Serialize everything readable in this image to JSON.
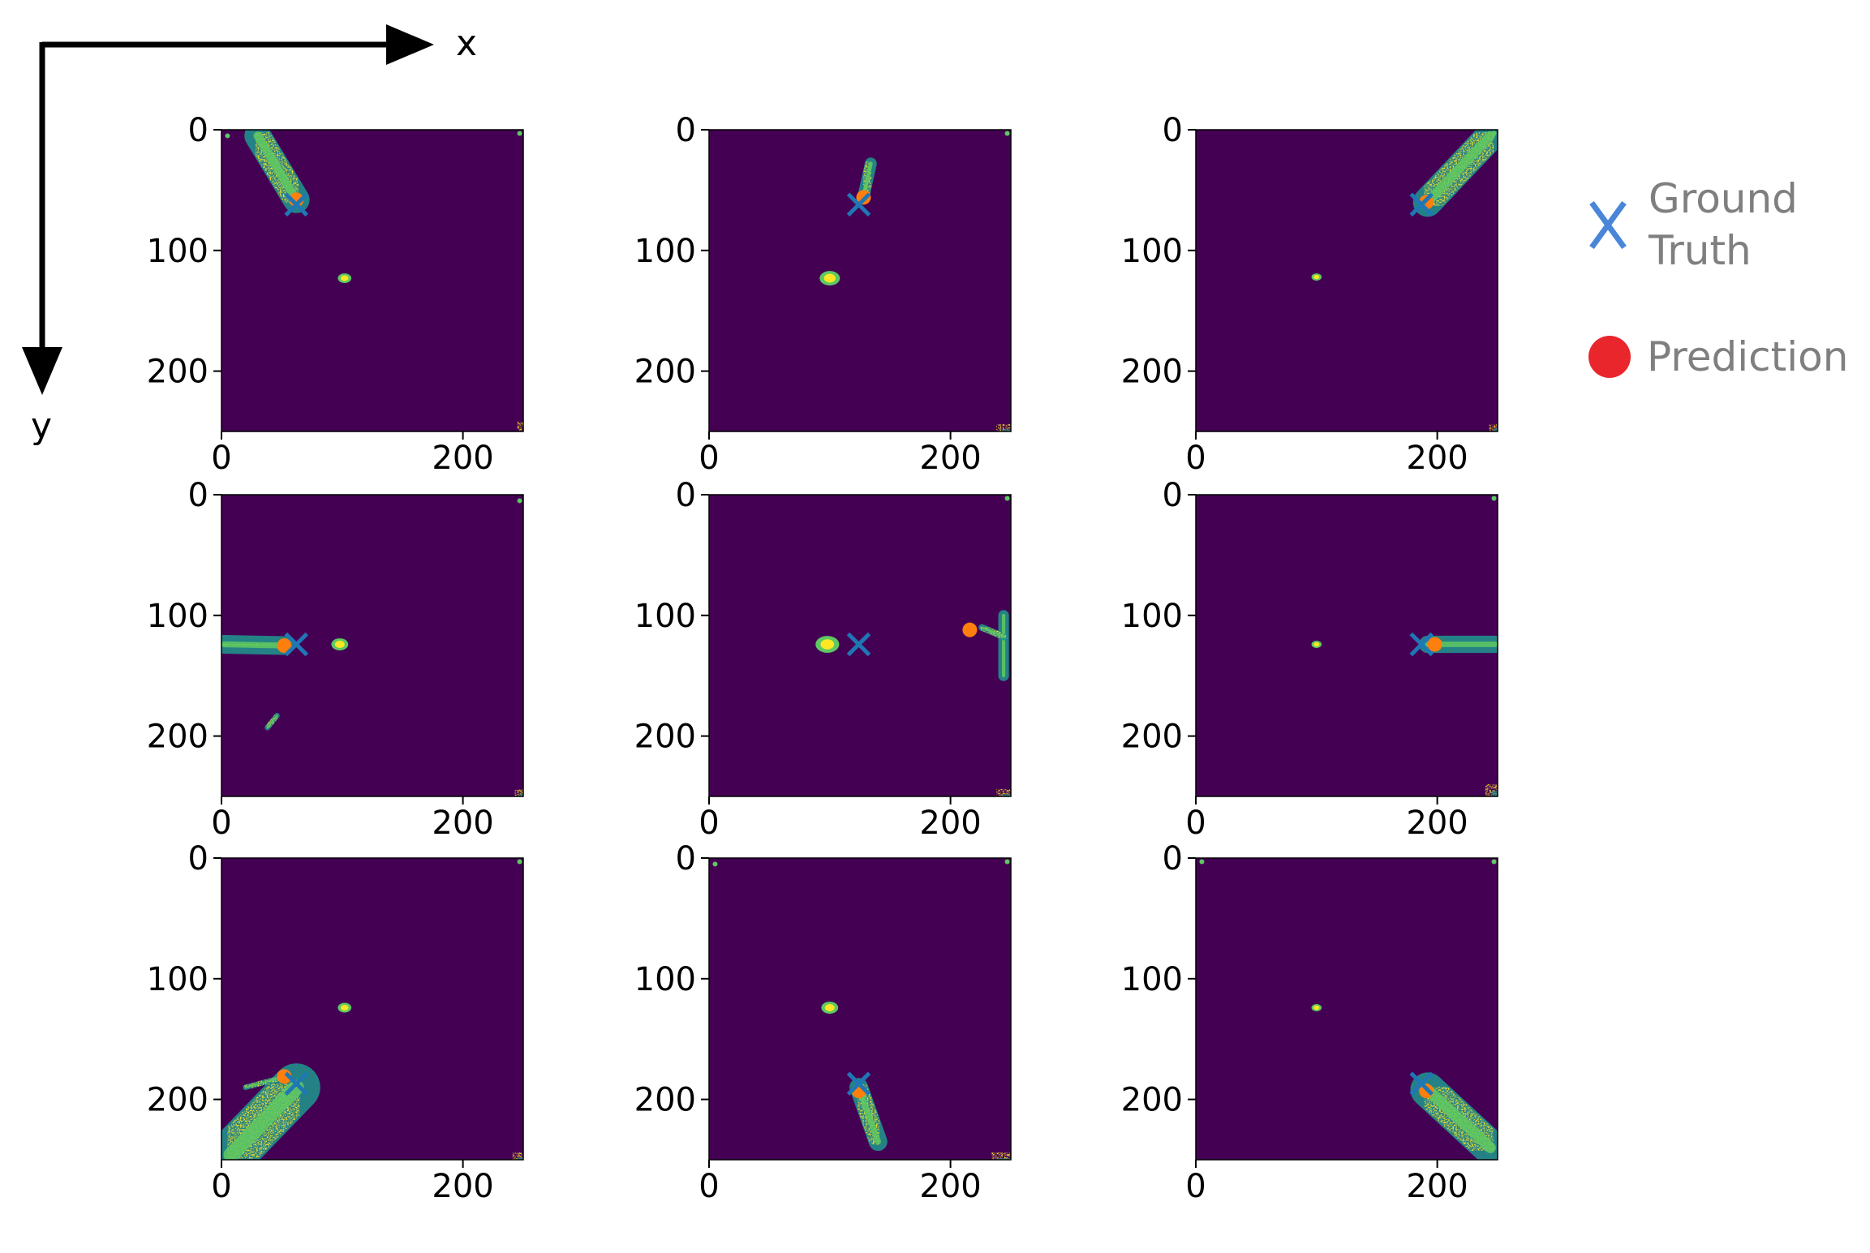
{
  "colors": {
    "background": "#440154",
    "heat_low": "#21918c",
    "heat_mid": "#5ec962",
    "heat_high": "#fde725",
    "ground_truth": "#1f77b4",
    "prediction": "#ff7f0e",
    "legend_x": "#4a86d8",
    "legend_dot": "#e8262c",
    "legend_text": "#7f7f7f"
  },
  "axis_indicator": {
    "x_label": "x",
    "y_label": "y"
  },
  "legend": {
    "ground_truth_line1": "Ground",
    "ground_truth_line2": "Truth",
    "prediction": "Prediction"
  },
  "chart_data": {
    "type": "heatmap",
    "grid": "3x3 panels",
    "image_extent": [
      0,
      250
    ],
    "x_ticks": [
      0,
      200
    ],
    "y_ticks": [
      0,
      100,
      200
    ],
    "panels": [
      {
        "ground_truth": [
          62,
          62
        ],
        "prediction": [
          62,
          58
        ],
        "blobs": [
          {
            "shape": "streak",
            "from": [
              30,
              5
            ],
            "to": [
              62,
              58
            ],
            "width": 20
          },
          {
            "shape": "spot",
            "at": [
              102,
              123
            ],
            "r": 4
          },
          {
            "shape": "corner",
            "at": [
              245,
              242
            ],
            "size": 16
          },
          {
            "shape": "dot",
            "at": [
              5,
              5
            ],
            "r": 2
          },
          {
            "shape": "dot",
            "at": [
              247,
              3
            ],
            "r": 2
          }
        ]
      },
      {
        "ground_truth": [
          124,
          62
        ],
        "prediction": [
          128,
          56
        ],
        "blobs": [
          {
            "shape": "streak",
            "from": [
              134,
              28
            ],
            "to": [
              128,
              55
            ],
            "width": 9
          },
          {
            "shape": "spot",
            "at": [
              100,
              123
            ],
            "r": 6
          },
          {
            "shape": "corner",
            "at": [
              238,
              244
            ],
            "size": 14
          },
          {
            "shape": "dot",
            "at": [
              247,
              3
            ],
            "r": 2
          }
        ]
      },
      {
        "ground_truth": [
          187,
          62
        ],
        "prediction": [
          191,
          60
        ],
        "blobs": [
          {
            "shape": "streak",
            "from": [
              244,
              5
            ],
            "to": [
              192,
              60
            ],
            "width": 22
          },
          {
            "shape": "spot",
            "at": [
              100,
              122
            ],
            "r": 3
          },
          {
            "shape": "corner",
            "at": [
              243,
              244
            ],
            "size": 12
          },
          {
            "shape": "dot",
            "at": [
              247,
              3
            ],
            "r": 2
          }
        ]
      },
      {
        "ground_truth": [
          62,
          124
        ],
        "prediction": [
          52,
          125
        ],
        "blobs": [
          {
            "shape": "streak",
            "from": [
              2,
              124
            ],
            "to": [
              52,
              125
            ],
            "width": 14
          },
          {
            "shape": "spot",
            "at": [
              98,
              124
            ],
            "r": 5
          },
          {
            "shape": "streak",
            "from": [
              46,
              183
            ],
            "to": [
              38,
              193
            ],
            "width": 4
          },
          {
            "shape": "corner",
            "at": [
              243,
              244
            ],
            "size": 12
          },
          {
            "shape": "dot",
            "at": [
              247,
              5
            ],
            "r": 2
          }
        ]
      },
      {
        "ground_truth": [
          124,
          124
        ],
        "prediction": [
          216,
          112
        ],
        "blobs": [
          {
            "shape": "spot",
            "at": [
              98,
              124
            ],
            "r": 7
          },
          {
            "shape": "streak",
            "from": [
              244,
              100
            ],
            "to": [
              244,
              150
            ],
            "width": 8
          },
          {
            "shape": "streak",
            "from": [
              226,
              110
            ],
            "to": [
              245,
              118
            ],
            "width": 5
          },
          {
            "shape": "corner",
            "at": [
              238,
              244
            ],
            "size": 14
          },
          {
            "shape": "dot",
            "at": [
              247,
              3
            ],
            "r": 2
          }
        ]
      },
      {
        "ground_truth": [
          187,
          124
        ],
        "prediction": [
          198,
          124
        ],
        "blobs": [
          {
            "shape": "streak",
            "from": [
              192,
              124
            ],
            "to": [
              248,
              124
            ],
            "width": 13
          },
          {
            "shape": "spot",
            "at": [
              100,
              124
            ],
            "r": 3
          },
          {
            "shape": "corner",
            "at": [
              240,
              240
            ],
            "size": 18
          },
          {
            "shape": "dot",
            "at": [
              247,
              3
            ],
            "r": 2
          }
        ]
      },
      {
        "ground_truth": [
          62,
          187
        ],
        "prediction": [
          52,
          181
        ],
        "blobs": [
          {
            "shape": "streak",
            "from": [
              8,
              246
            ],
            "to": [
              62,
              190
            ],
            "width": 36
          },
          {
            "shape": "streak",
            "from": [
              20,
              190
            ],
            "to": [
              50,
              182
            ],
            "width": 4
          },
          {
            "shape": "spot",
            "at": [
              102,
              124
            ],
            "r": 4
          },
          {
            "shape": "corner",
            "at": [
              241,
              244
            ],
            "size": 14
          },
          {
            "shape": "dot",
            "at": [
              247,
              3
            ],
            "r": 2
          }
        ]
      },
      {
        "ground_truth": [
          124,
          187
        ],
        "prediction": [
          124,
          193
        ],
        "blobs": [
          {
            "shape": "streak",
            "from": [
              124,
              190
            ],
            "to": [
              140,
              235
            ],
            "width": 14
          },
          {
            "shape": "spot",
            "at": [
              100,
              124
            ],
            "r": 5
          },
          {
            "shape": "corner",
            "at": [
              234,
              244
            ],
            "size": 16
          },
          {
            "shape": "dot",
            "at": [
              5,
              5
            ],
            "r": 2
          },
          {
            "shape": "dot",
            "at": [
              247,
              3
            ],
            "r": 2
          }
        ]
      },
      {
        "ground_truth": [
          187,
          187
        ],
        "prediction": [
          191,
          193
        ],
        "blobs": [
          {
            "shape": "streak",
            "from": [
              192,
              192
            ],
            "to": [
              244,
              240
            ],
            "width": 26
          },
          {
            "shape": "spot",
            "at": [
              100,
              124
            ],
            "r": 3
          },
          {
            "shape": "dot",
            "at": [
              5,
              3
            ],
            "r": 2
          },
          {
            "shape": "dot",
            "at": [
              247,
              3
            ],
            "r": 2
          }
        ]
      }
    ]
  }
}
